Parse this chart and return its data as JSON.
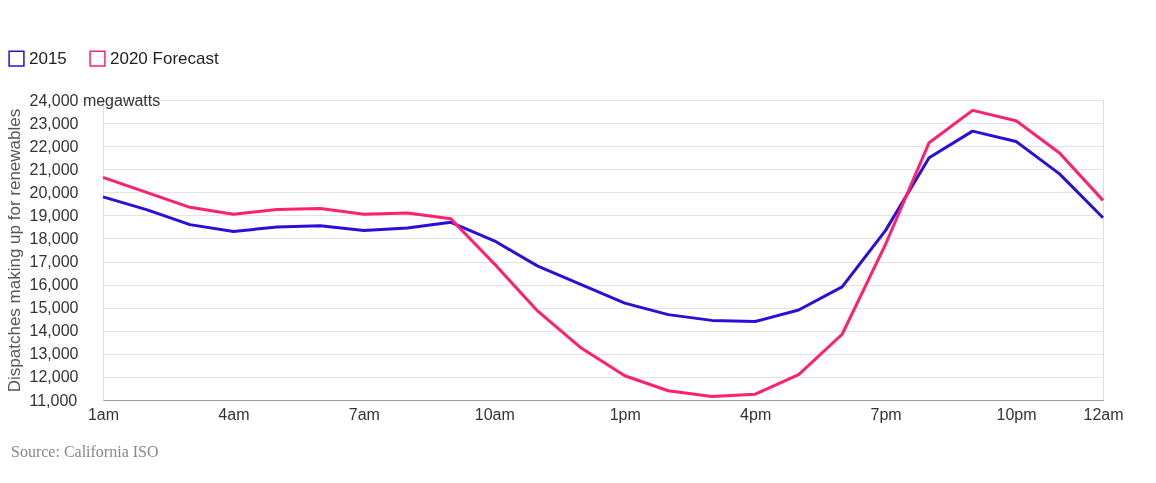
{
  "chart_data": {
    "type": "line",
    "ylabel": "Dispatches making up for renewables",
    "categories": [
      "1am",
      null,
      null,
      "4am",
      null,
      null,
      "7am",
      null,
      null,
      "10am",
      null,
      null,
      "1pm",
      null,
      null,
      "4pm",
      null,
      null,
      "7pm",
      null,
      null,
      "10pm",
      null,
      "12am"
    ],
    "series": [
      {
        "name": "2015",
        "color": "#2b0fd9",
        "values": [
          19800,
          19250,
          18600,
          18300,
          18500,
          18550,
          18350,
          18450,
          18700,
          17900,
          16800,
          16000,
          15200,
          14700,
          14450,
          14400,
          14900,
          15900,
          18350,
          21500,
          22650,
          22200,
          20800,
          18900
        ]
      },
      {
        "name": "2020 Forecast",
        "color": "#ff2070",
        "values": [
          20650,
          20000,
          19350,
          19050,
          19250,
          19300,
          19050,
          19100,
          18850,
          16900,
          14850,
          13250,
          12050,
          11400,
          11150,
          11250,
          12100,
          13850,
          17750,
          22150,
          23550,
          23100,
          21700,
          19650
        ]
      }
    ],
    "ylim": [
      11000,
      24000
    ],
    "yticks": [
      {
        "value": 11000,
        "label": "11,000"
      },
      {
        "value": 12000,
        "label": "12,000"
      },
      {
        "value": 13000,
        "label": "13,000"
      },
      {
        "value": 14000,
        "label": "14,000"
      },
      {
        "value": 15000,
        "label": "15,000"
      },
      {
        "value": 16000,
        "label": "16,000"
      },
      {
        "value": 17000,
        "label": "17,000"
      },
      {
        "value": 18000,
        "label": "18,000"
      },
      {
        "value": 19000,
        "label": "19,000"
      },
      {
        "value": 20000,
        "label": "20,000"
      },
      {
        "value": 21000,
        "label": "21,000"
      },
      {
        "value": 22000,
        "label": "22,000"
      },
      {
        "value": 23000,
        "label": "23,000"
      },
      {
        "value": 24000,
        "label": "24,000 megawatts"
      }
    ],
    "grid": "y",
    "legend": "top left",
    "marker": "none",
    "line_style": "solid",
    "annotations": [
      "Source: California ISO"
    ]
  }
}
